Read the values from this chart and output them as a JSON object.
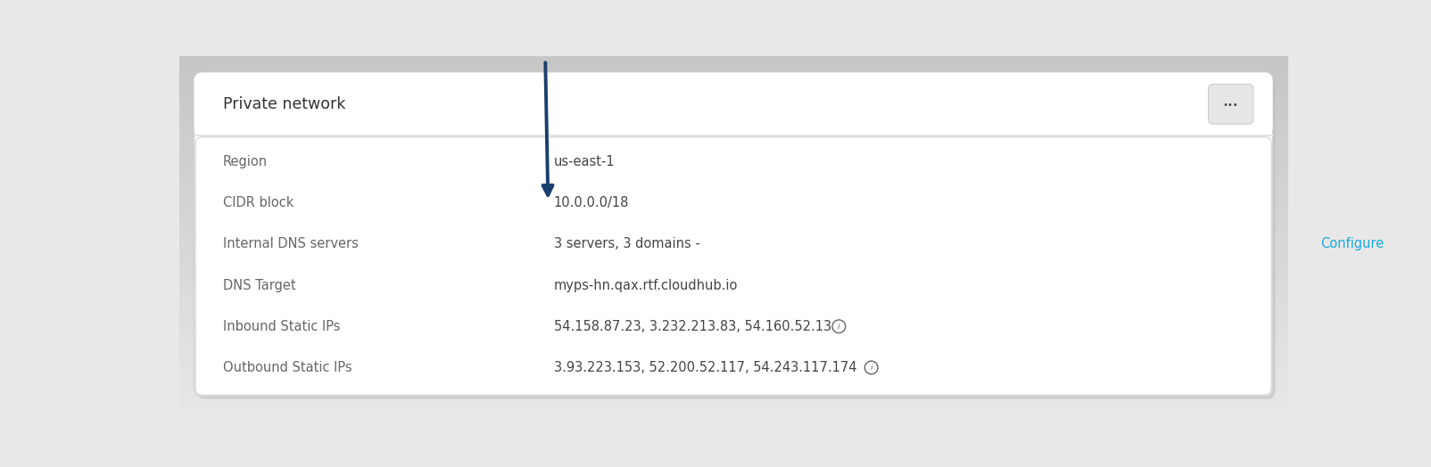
{
  "bg_color": "#e8e8e8",
  "card_bg": "#ffffff",
  "card_border": "#d0d0d0",
  "header_text": "Private network",
  "header_font_size": 12.5,
  "header_text_color": "#333333",
  "menu_btn_color": "#e6e6e6",
  "menu_btn_border": "#cccccc",
  "menu_dots": "•••",
  "rows": [
    {
      "label": "Region",
      "value": "us-east-1",
      "link": null
    },
    {
      "label": "CIDR block",
      "value": "10.0.0.0/18",
      "link": null
    },
    {
      "label": "Internal DNS servers",
      "value": "3 servers, 3 domains -",
      "link": "Configure"
    },
    {
      "label": "DNS Target",
      "value": "myps-hn.qax.rtf.cloudhub.io",
      "link": null
    },
    {
      "label": "Inbound Static IPs (i)",
      "value": "54.158.87.23, 3.232.213.83, 54.160.52.13",
      "link": null
    },
    {
      "label": "Outbound Static IPs (i)",
      "value": "3.93.223.153, 52.200.52.117, 54.243.117.174",
      "link": null
    }
  ],
  "label_color": "#666666",
  "value_color": "#444444",
  "link_color": "#1aabdc",
  "row_font_size": 10.5,
  "arrow_color": "#1a3f6f",
  "divider_color": "#e0e0e0",
  "shadow_top_color": "#c8c8c8",
  "shadow_bottom_color": "#e8e8e8"
}
